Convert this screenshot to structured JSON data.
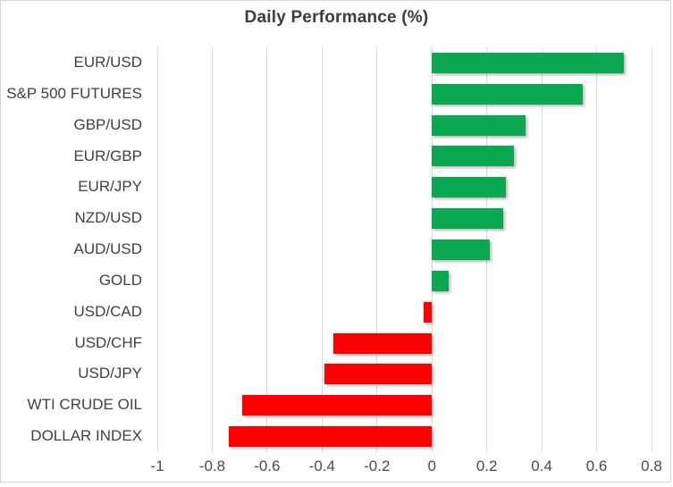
{
  "chart_data": {
    "type": "bar",
    "orientation": "horizontal",
    "title": "Daily Performance (%)",
    "categories": [
      "EUR/USD",
      "S&P 500 FUTURES",
      "GBP/USD",
      "EUR/GBP",
      "EUR/JPY",
      "NZD/USD",
      "AUD/USD",
      "GOLD",
      "USD/CAD",
      "USD/CHF",
      "USD/JPY",
      "WTI CRUDE OIL",
      "DOLLAR INDEX"
    ],
    "values": [
      0.7,
      0.55,
      0.34,
      0.3,
      0.27,
      0.26,
      0.21,
      0.06,
      -0.03,
      -0.36,
      -0.39,
      -0.69,
      -0.74
    ],
    "xlabel": "",
    "ylabel": "",
    "xlim": [
      -1,
      0.8
    ],
    "xticks": [
      -1,
      -0.8,
      -0.6,
      -0.4,
      -0.2,
      0,
      0.2,
      0.4,
      0.6,
      0.8
    ],
    "xtick_labels": [
      "-1",
      "-0.8",
      "-0.6",
      "-0.4",
      "-0.2",
      "0",
      "0.2",
      "0.4",
      "0.6",
      "0.8"
    ],
    "grid": true,
    "legend": false,
    "colors": {
      "positive_bar": "#0aa850",
      "negative_bar": "#fe0000",
      "gridline": "#d9d9d9",
      "chart_border": "#d6d6d6",
      "title_text": "#3d3d3d",
      "category_text": "#404040",
      "tick_text": "#4a4a4a",
      "background": "#ffffff"
    }
  }
}
